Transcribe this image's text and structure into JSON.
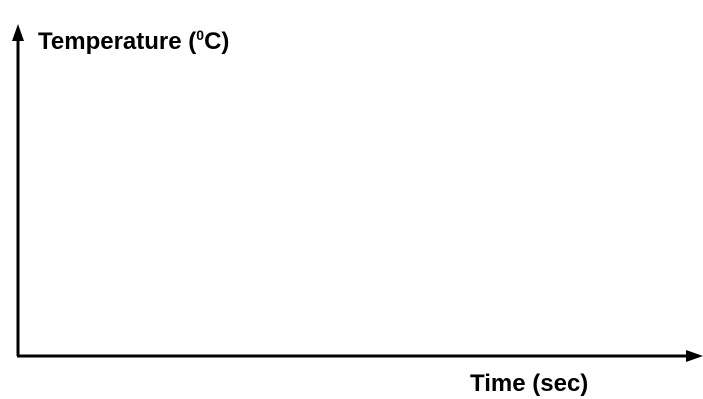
{
  "chart_data": {
    "type": "line",
    "title": "",
    "ylabel": {
      "prefix": "Temperature (",
      "superscript": "0",
      "suffix": "C)"
    },
    "xlabel": "Time (sec)",
    "series": [],
    "grid": false,
    "axis_color": "#000000"
  }
}
